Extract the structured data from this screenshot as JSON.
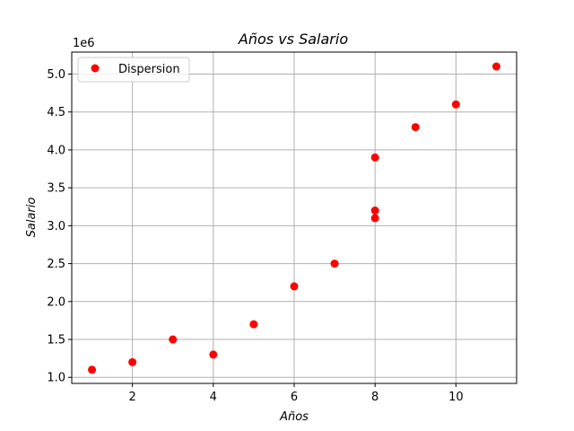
{
  "chart_data": {
    "type": "scatter",
    "title": "Años vs Salario",
    "xlabel": "Años",
    "ylabel": "Salario",
    "y_offset_label": "1e6",
    "xlim": [
      0.5,
      11.5
    ],
    "ylim": [
      0.92,
      5.29
    ],
    "x_ticks": [
      2,
      4,
      6,
      8,
      10
    ],
    "x_tick_labels": [
      "2",
      "4",
      "6",
      "8",
      "10"
    ],
    "y_ticks": [
      1.0,
      1.5,
      2.0,
      2.5,
      3.0,
      3.5,
      4.0,
      4.5,
      5.0
    ],
    "y_tick_labels": [
      "1.0",
      "1.5",
      "2.0",
      "2.5",
      "3.0",
      "3.5",
      "4.0",
      "4.5",
      "5.0"
    ],
    "grid": true,
    "legend_position": "upper-left",
    "series": [
      {
        "name": "Dispersion",
        "color": "#ff0000",
        "marker": "circle",
        "points": [
          {
            "x": 1,
            "y": 1.1
          },
          {
            "x": 2,
            "y": 1.2
          },
          {
            "x": 3,
            "y": 1.5
          },
          {
            "x": 4,
            "y": 1.3
          },
          {
            "x": 5,
            "y": 1.7
          },
          {
            "x": 6,
            "y": 2.2
          },
          {
            "x": 7,
            "y": 2.5
          },
          {
            "x": 8,
            "y": 3.1
          },
          {
            "x": 8,
            "y": 3.2
          },
          {
            "x": 8,
            "y": 3.9
          },
          {
            "x": 9,
            "y": 4.3
          },
          {
            "x": 10,
            "y": 4.6
          },
          {
            "x": 11,
            "y": 5.1
          }
        ]
      }
    ]
  }
}
